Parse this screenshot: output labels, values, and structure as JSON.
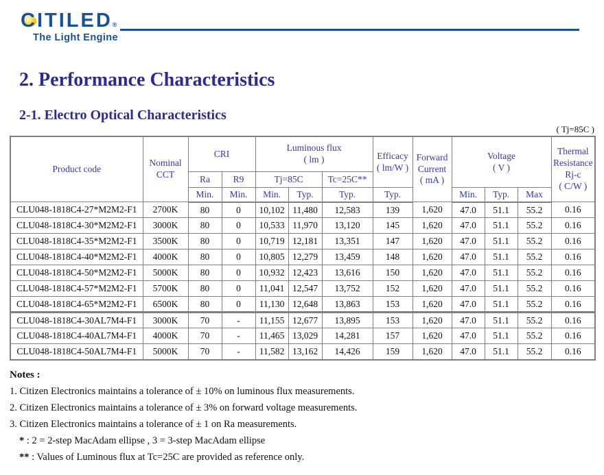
{
  "logo": {
    "brand": "CITILED",
    "registered": "®",
    "tagline": "The Light Engine"
  },
  "headings": {
    "section": "2. Performance Characteristics",
    "subsection": "2-1. Electro Optical Characteristics",
    "condition": "( Tj=85C )"
  },
  "table": {
    "header": {
      "product_code": "Product code",
      "nominal_cct": "Nominal\nCCT",
      "cri": "CRI",
      "ra": "Ra",
      "r9": "R9",
      "luminous_flux": "Luminous flux\n( lm )",
      "tj85": "Tj=85C",
      "tc25": "Tc=25C**",
      "efficacy": "Efficacy\n( lm/W )",
      "forward_current": "Forward\nCurrent\n( mA )",
      "voltage": "Voltage\n( V )",
      "thermal_resistance": "Thermal\nResistance\nRj-c\n( C/W )",
      "min": "Min.",
      "typ": "Typ.",
      "max": "Max"
    },
    "rows": [
      [
        "CLU048-1818C4-27*M2M2-F1",
        "2700K",
        "80",
        "0",
        "10,102",
        "11,480",
        "12,583",
        "139",
        "1,620",
        "47.0",
        "51.1",
        "55.2",
        "0.16"
      ],
      [
        "CLU048-1818C4-30*M2M2-F1",
        "3000K",
        "80",
        "0",
        "10,533",
        "11,970",
        "13,120",
        "145",
        "1,620",
        "47.0",
        "51.1",
        "55.2",
        "0.16"
      ],
      [
        "CLU048-1818C4-35*M2M2-F1",
        "3500K",
        "80",
        "0",
        "10,719",
        "12,181",
        "13,351",
        "147",
        "1,620",
        "47.0",
        "51.1",
        "55.2",
        "0.16"
      ],
      [
        "CLU048-1818C4-40*M2M2-F1",
        "4000K",
        "80",
        "0",
        "10,805",
        "12,279",
        "13,459",
        "148",
        "1,620",
        "47.0",
        "51.1",
        "55.2",
        "0.16"
      ],
      [
        "CLU048-1818C4-50*M2M2-F1",
        "5000K",
        "80",
        "0",
        "10,932",
        "12,423",
        "13,616",
        "150",
        "1,620",
        "47.0",
        "51.1",
        "55.2",
        "0.16"
      ],
      [
        "CLU048-1818C4-57*M2M2-F1",
        "5700K",
        "80",
        "0",
        "11,041",
        "12,547",
        "13,752",
        "152",
        "1,620",
        "47.0",
        "51.1",
        "55.2",
        "0.16"
      ],
      [
        "CLU048-1818C4-65*M2M2-F1",
        "6500K",
        "80",
        "0",
        "11,130",
        "12,648",
        "13,863",
        "153",
        "1,620",
        "47.0",
        "51.1",
        "55.2",
        "0.16"
      ],
      [
        "CLU048-1818C4-30AL7M4-F1",
        "3000K",
        "70",
        "-",
        "11,155",
        "12,677",
        "13,895",
        "153",
        "1,620",
        "47.0",
        "51.1",
        "55.2",
        "0.16"
      ],
      [
        "CLU048-1818C4-40AL7M4-F1",
        "4000K",
        "70",
        "-",
        "11,465",
        "13,029",
        "14,281",
        "157",
        "1,620",
        "47.0",
        "51.1",
        "55.2",
        "0.16"
      ],
      [
        "CLU048-1818C4-50AL7M4-F1",
        "5000K",
        "70",
        "-",
        "11,582",
        "13,162",
        "14,426",
        "159",
        "1,620",
        "47.0",
        "51.1",
        "55.2",
        "0.16"
      ]
    ],
    "group_start_row_index": 7
  },
  "notes": {
    "title": "Notes :",
    "items": [
      "1. Citizen Electronics maintains a tolerance of ± 10% on luminous flux measurements.",
      "2. Citizen Electronics maintains a tolerance of ± 3% on forward voltage measurements.",
      "3. Citizen Electronics maintains a tolerance of ± 1 on Ra measurements."
    ],
    "star_note": {
      "marker": "*",
      "text": ": 2 = 2-step MacAdam ellipse , 3 = 3-step MacAdam ellipse"
    },
    "double_star_note": {
      "marker": "**",
      "text": ": Values of Luminous flux at Tc=25C are provided as reference only."
    }
  },
  "colors": {
    "brand_blue": "#17509e",
    "heading_blue": "#2a2a99",
    "table_header_blue": "#3434c8",
    "border_gray": "#7f7f7f",
    "logo_ball_yellow": "#f5b800"
  }
}
